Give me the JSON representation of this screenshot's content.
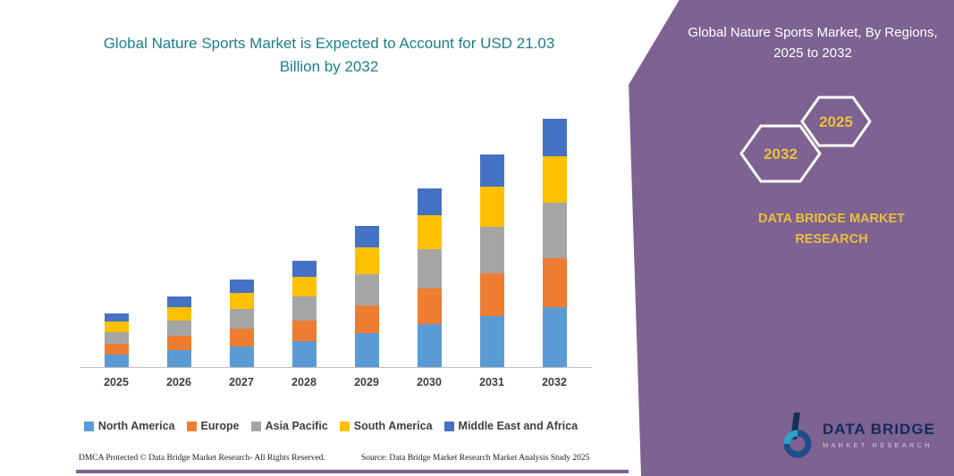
{
  "colors": {
    "title_teal": "#1B7F89",
    "panel_purple": "#7D6292",
    "accent_yellow": "#E9BD3C",
    "axis_gray": "#BFBFBF",
    "label_gray": "#3F3F3F"
  },
  "chart_data": {
    "type": "bar",
    "stacked": true,
    "title": "Global Nature Sports Market is Expected to Account for USD 21.03 Billion by 2032",
    "unit": "USD Billion",
    "categories": [
      "2025",
      "2026",
      "2027",
      "2028",
      "2029",
      "2030",
      "2031",
      "2032"
    ],
    "series": [
      {
        "name": "North America",
        "color": "#5B9BD5",
        "values": [
          1.08,
          1.44,
          1.78,
          2.16,
          2.86,
          3.62,
          4.32,
          5.04
        ]
      },
      {
        "name": "Europe",
        "color": "#ED7D31",
        "values": [
          0.9,
          1.2,
          1.48,
          1.8,
          2.38,
          3.02,
          3.6,
          4.21
        ]
      },
      {
        "name": "Asia Pacific",
        "color": "#A5A5A5",
        "values": [
          0.99,
          1.32,
          1.63,
          1.98,
          2.62,
          3.32,
          3.96,
          4.63
        ]
      },
      {
        "name": "South America",
        "color": "#FFC000",
        "values": [
          0.86,
          1.14,
          1.41,
          1.71,
          2.26,
          2.87,
          3.42,
          4.0
        ]
      },
      {
        "name": "Middle East and Africa",
        "color": "#4472C4",
        "values": [
          0.68,
          0.9,
          1.11,
          1.35,
          1.79,
          2.27,
          2.7,
          3.15
        ]
      }
    ],
    "totals": [
      4.51,
      6.0,
      7.41,
      9.0,
      11.91,
      15.1,
      18.0,
      21.03
    ],
    "xlabel": "",
    "ylabel": "",
    "ylim": [
      0,
      22
    ],
    "grid": false,
    "legend_position": "bottom"
  },
  "left": {
    "title": "Global Nature Sports Market is Expected to Account for USD 21.03 Billion by 2032",
    "footer_left": "DMCA Protected © Data Bridge Market Research-  All Rights Reserved.",
    "footer_source": "Source: Data Bridge Market Research  Market Analysis Study 2025"
  },
  "panel": {
    "heading": "Global Nature Sports Market, By Regions, 2025 to 2032",
    "hexagons": [
      {
        "year": "2032"
      },
      {
        "year": "2025"
      }
    ],
    "brand_text": "DATA BRIDGE MARKET RESEARCH",
    "logo": {
      "name": "DATA BRIDGE",
      "tagline": "MARKET RESEARCH"
    }
  }
}
